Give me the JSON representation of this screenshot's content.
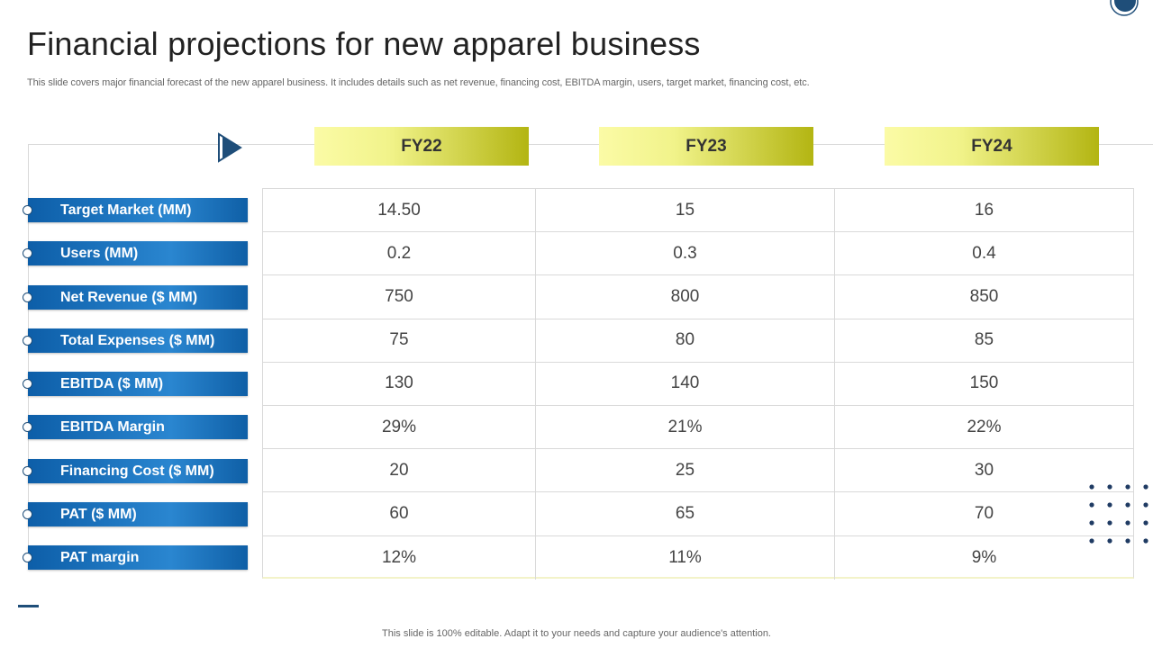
{
  "header": {
    "title": "Financial projections for new apparel business",
    "subtitle": "This slide covers major financial forecast of the new apparel business. It includes details such as net revenue, financing cost, EBITDA  margin, users, target market, financing cost, etc."
  },
  "table": {
    "columns": [
      "FY22",
      "FY23",
      "FY24"
    ],
    "rows": [
      {
        "label": "Target Market (MM)",
        "values": [
          "14.50",
          "15",
          "16"
        ]
      },
      {
        "label": "Users (MM)",
        "values": [
          "0.2",
          "0.3",
          "0.4"
        ]
      },
      {
        "label": "Net Revenue ($ MM)",
        "values": [
          "750",
          "800",
          "850"
        ]
      },
      {
        "label": "Total Expenses ($ MM)",
        "values": [
          "75",
          "80",
          "85"
        ]
      },
      {
        "label": "EBITDA ($ MM)",
        "values": [
          "130",
          "140",
          "150"
        ]
      },
      {
        "label": "EBITDA Margin",
        "values": [
          "29%",
          "21%",
          "22%"
        ]
      },
      {
        "label": "Financing Cost ($ MM)",
        "values": [
          "20",
          "25",
          "30"
        ]
      },
      {
        "label": "PAT ($ MM)",
        "values": [
          "60",
          "65",
          "70"
        ]
      },
      {
        "label": "PAT margin",
        "values": [
          "12%",
          "11%",
          "9%"
        ]
      }
    ]
  },
  "footer": {
    "note": "This slide is 100% editable. Adapt it to your needs and capture your audience's attention."
  },
  "colors": {
    "accent_blue": "#1f4e79",
    "label_blue": "#1a73c0",
    "header_yellow_light": "#fbfba6",
    "header_yellow_dark": "#b3b512"
  },
  "icons": {
    "play": "play-triangle-icon",
    "corner": "circle-decoration-icon",
    "dots": "dot-grid-decoration"
  }
}
